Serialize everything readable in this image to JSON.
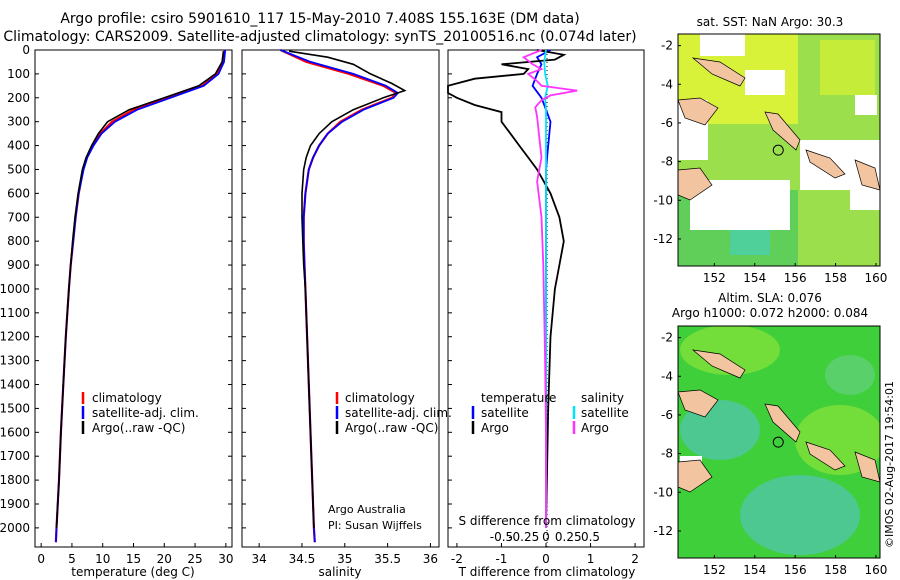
{
  "header": {
    "title_line1": "Argo profile: csiro 5901610_117 15-May-2010 7.408S 155.163E (DM data)",
    "title_line2": "Climatology: CARS2009. Satellite-adjusted climatology: synTS_20100516.nc (0.074d later)"
  },
  "colors": {
    "climatology": "#ff0000",
    "satellite": "#0000ff",
    "argo": "#000000",
    "s_satellite": "#00e5ff",
    "s_argo": "#ff33ff",
    "land": "#f2c5a0"
  },
  "chart_data": [
    {
      "type": "line",
      "name": "temperature",
      "xlabel": "temperature (deg C)",
      "ylabel": "",
      "xlim": [
        -1,
        31
      ],
      "ylim": [
        2080,
        0
      ],
      "xticks": [
        0,
        5,
        10,
        15,
        20,
        25,
        30
      ],
      "yticks": [
        0,
        100,
        200,
        300,
        400,
        500,
        600,
        700,
        800,
        900,
        1000,
        1100,
        1200,
        1300,
        1400,
        1500,
        1600,
        1700,
        1800,
        1900,
        2000
      ],
      "legend": [
        "climatology",
        "satellite-adj. clim.",
        "Argo(..raw -QC)"
      ],
      "series": [
        {
          "name": "climatology",
          "color": "#ff0000",
          "y": [
            0,
            50,
            100,
            150,
            200,
            250,
            300,
            350,
            400,
            450,
            500,
            600,
            700,
            800,
            900,
            1000,
            1200,
            1400,
            1600,
            1800,
            2000,
            2060
          ],
          "x": [
            29.8,
            29.5,
            28.6,
            26.2,
            20.5,
            15.0,
            11.5,
            9.6,
            8.4,
            7.4,
            6.8,
            6.1,
            5.6,
            5.2,
            4.8,
            4.5,
            4.0,
            3.6,
            3.2,
            2.9,
            2.5,
            2.4
          ]
        },
        {
          "name": "satellite-adj. clim.",
          "color": "#0000ff",
          "y": [
            0,
            50,
            100,
            150,
            200,
            250,
            300,
            350,
            400,
            450,
            500,
            600,
            700,
            800,
            900,
            1000,
            1200,
            1400,
            1600,
            1800,
            2000,
            2060
          ],
          "x": [
            29.9,
            29.7,
            28.8,
            26.4,
            21.0,
            15.6,
            12.0,
            9.8,
            8.5,
            7.5,
            6.9,
            6.1,
            5.6,
            5.2,
            4.8,
            4.5,
            4.0,
            3.6,
            3.2,
            2.9,
            2.5,
            2.4
          ]
        },
        {
          "name": "Argo(..raw -QC)",
          "color": "#000000",
          "y": [
            5,
            50,
            100,
            150,
            200,
            250,
            300,
            350,
            400,
            450,
            500,
            600,
            700,
            800,
            900,
            1000,
            1200,
            1400,
            1600,
            1800,
            2000
          ],
          "x": [
            29.6,
            29.4,
            28.3,
            25.6,
            20.0,
            14.3,
            10.8,
            9.3,
            8.2,
            7.3,
            6.7,
            6.0,
            5.5,
            5.1,
            4.8,
            4.5,
            4.0,
            3.6,
            3.2,
            2.9,
            2.5
          ]
        }
      ]
    },
    {
      "type": "line",
      "name": "salinity",
      "xlabel": "salinity",
      "ylabel": "",
      "xlim": [
        33.8,
        36.1
      ],
      "ylim": [
        2080,
        0
      ],
      "xticks": [
        34,
        34.5,
        35,
        35.5,
        36
      ],
      "legend": [
        "climatology",
        "satellite-adj. clim.",
        "Argo(..raw -QC)"
      ],
      "annotation": [
        "Argo Australia",
        "PI: Susan Wijffels"
      ],
      "series": [
        {
          "name": "climatology",
          "color": "#ff0000",
          "y": [
            0,
            50,
            100,
            150,
            180,
            200,
            250,
            300,
            350,
            400,
            450,
            500,
            600,
            700,
            800,
            900,
            1000,
            1200,
            1400,
            1600,
            1800,
            2000,
            2060
          ],
          "x": [
            34.25,
            34.55,
            35.05,
            35.45,
            35.6,
            35.55,
            35.2,
            34.95,
            34.8,
            34.7,
            34.63,
            34.58,
            34.54,
            34.52,
            34.52,
            34.53,
            34.54,
            34.56,
            34.58,
            34.6,
            34.62,
            34.64,
            34.65
          ]
        },
        {
          "name": "satellite-adj. clim.",
          "color": "#0000ff",
          "y": [
            0,
            50,
            100,
            150,
            180,
            200,
            250,
            300,
            350,
            400,
            450,
            500,
            600,
            700,
            800,
            900,
            1000,
            1200,
            1400,
            1600,
            1800,
            2000,
            2060
          ],
          "x": [
            34.25,
            34.6,
            35.1,
            35.48,
            35.62,
            35.57,
            35.22,
            34.97,
            34.8,
            34.7,
            34.63,
            34.58,
            34.54,
            34.52,
            34.52,
            34.53,
            34.54,
            34.56,
            34.58,
            34.6,
            34.62,
            34.64,
            34.65
          ]
        },
        {
          "name": "Argo(..raw -QC)",
          "color": "#000000",
          "y": [
            5,
            30,
            60,
            100,
            140,
            170,
            200,
            250,
            300,
            350,
            400,
            450,
            500,
            600,
            700,
            800,
            900,
            1000,
            1200,
            1400,
            1600,
            1800,
            2000
          ],
          "x": [
            34.35,
            34.8,
            35.1,
            35.3,
            35.55,
            35.7,
            35.45,
            35.1,
            34.85,
            34.7,
            34.6,
            34.55,
            34.52,
            34.5,
            34.5,
            34.51,
            34.52,
            34.54,
            34.56,
            34.58,
            34.6,
            34.62,
            34.64
          ]
        }
      ]
    },
    {
      "type": "line",
      "name": "differences",
      "xlabel": "T difference from climatology",
      "xlabel_top": "S difference from climatology",
      "xlim": [
        -2.2,
        2.2
      ],
      "ylim": [
        2080,
        0
      ],
      "xticks": [
        -2,
        -1,
        0,
        1,
        2
      ],
      "xticks_top": [
        "-0.5",
        "-0.25",
        "0",
        "0.25",
        "0.5"
      ],
      "legend_t_title": "temperature",
      "legend_s_title": "salinity",
      "legend_t": [
        "satellite",
        "Argo"
      ],
      "legend_s": [
        "satellite",
        "Argo"
      ],
      "series": [
        {
          "name": "T satellite",
          "color": "#0000ff",
          "y": [
            0,
            30,
            60,
            100,
            150,
            200,
            250,
            300,
            400,
            500,
            700,
            1000,
            1500,
            2000
          ],
          "x": [
            0.1,
            -0.2,
            -0.1,
            -0.2,
            -0.3,
            -0.1,
            0.0,
            0.1,
            0.05,
            0.0,
            0.0,
            0.0,
            0.0,
            0.0
          ]
        },
        {
          "name": "T Argo",
          "color": "#000000",
          "y": [
            0,
            20,
            40,
            60,
            80,
            100,
            120,
            150,
            180,
            200,
            230,
            260,
            300,
            350,
            400,
            450,
            500,
            600,
            700,
            800,
            900,
            1000,
            1200,
            1500,
            2000
          ],
          "x": [
            -0.2,
            0.4,
            0.2,
            -1.0,
            -0.4,
            -0.5,
            -1.6,
            -2.2,
            -2.2,
            -2.0,
            -1.6,
            -1.0,
            -1.0,
            -0.8,
            -0.6,
            -0.4,
            -0.2,
            0.1,
            0.3,
            0.4,
            0.3,
            0.2,
            0.1,
            0.05,
            0.0
          ]
        },
        {
          "name": "S satellite",
          "color": "#00e5ff",
          "y": [
            0,
            50,
            100,
            150,
            200,
            250,
            300,
            400,
            500,
            700,
            1000,
            1500,
            2000
          ],
          "x": [
            0.0,
            -0.02,
            -0.01,
            0.02,
            -0.01,
            0.0,
            0.0,
            0.0,
            0.0,
            0.0,
            0.0,
            0.0,
            0.0
          ]
        },
        {
          "name": "S Argo",
          "color": "#ff33ff",
          "y": [
            0,
            30,
            60,
            80,
            100,
            130,
            150,
            170,
            190,
            210,
            240,
            280,
            350,
            450,
            550,
            700,
            900,
            1100,
            1300,
            1600,
            2000
          ],
          "x": [
            -0.05,
            -0.25,
            -0.15,
            -0.05,
            -0.2,
            -0.1,
            -0.05,
            0.35,
            0.05,
            -0.05,
            -0.12,
            -0.1,
            -0.08,
            -0.05,
            -0.1,
            -0.05,
            -0.03,
            -0.02,
            -0.01,
            0.0,
            0.0
          ]
        }
      ]
    },
    {
      "type": "heatmap",
      "name": "sst-map",
      "title": "sat. SST: NaN Argo: 30.3",
      "xticks": [
        152,
        154,
        156,
        158,
        160
      ],
      "yticks": [
        -2,
        -4,
        -6,
        -8,
        -10,
        -12
      ],
      "xlim": [
        150.2,
        160.2
      ],
      "ylim": [
        -13.4,
        -1.4
      ],
      "argo_position": [
        155.163,
        -7.408
      ]
    },
    {
      "type": "heatmap",
      "name": "sla-map",
      "title": "Altim. SLA: 0.076",
      "subtitle": "Argo h1000: 0.072 h2000: 0.084",
      "xticks": [
        152,
        154,
        156,
        158,
        160
      ],
      "yticks": [
        -2,
        -4,
        -6,
        -8,
        -10,
        -12
      ],
      "xlim": [
        150.2,
        160.2
      ],
      "ylim": [
        -13.4,
        -1.4
      ],
      "argo_position": [
        155.163,
        -7.408
      ]
    }
  ],
  "footer": {
    "stamp": "©IMOS 02-Aug-2017 19:54:01"
  }
}
